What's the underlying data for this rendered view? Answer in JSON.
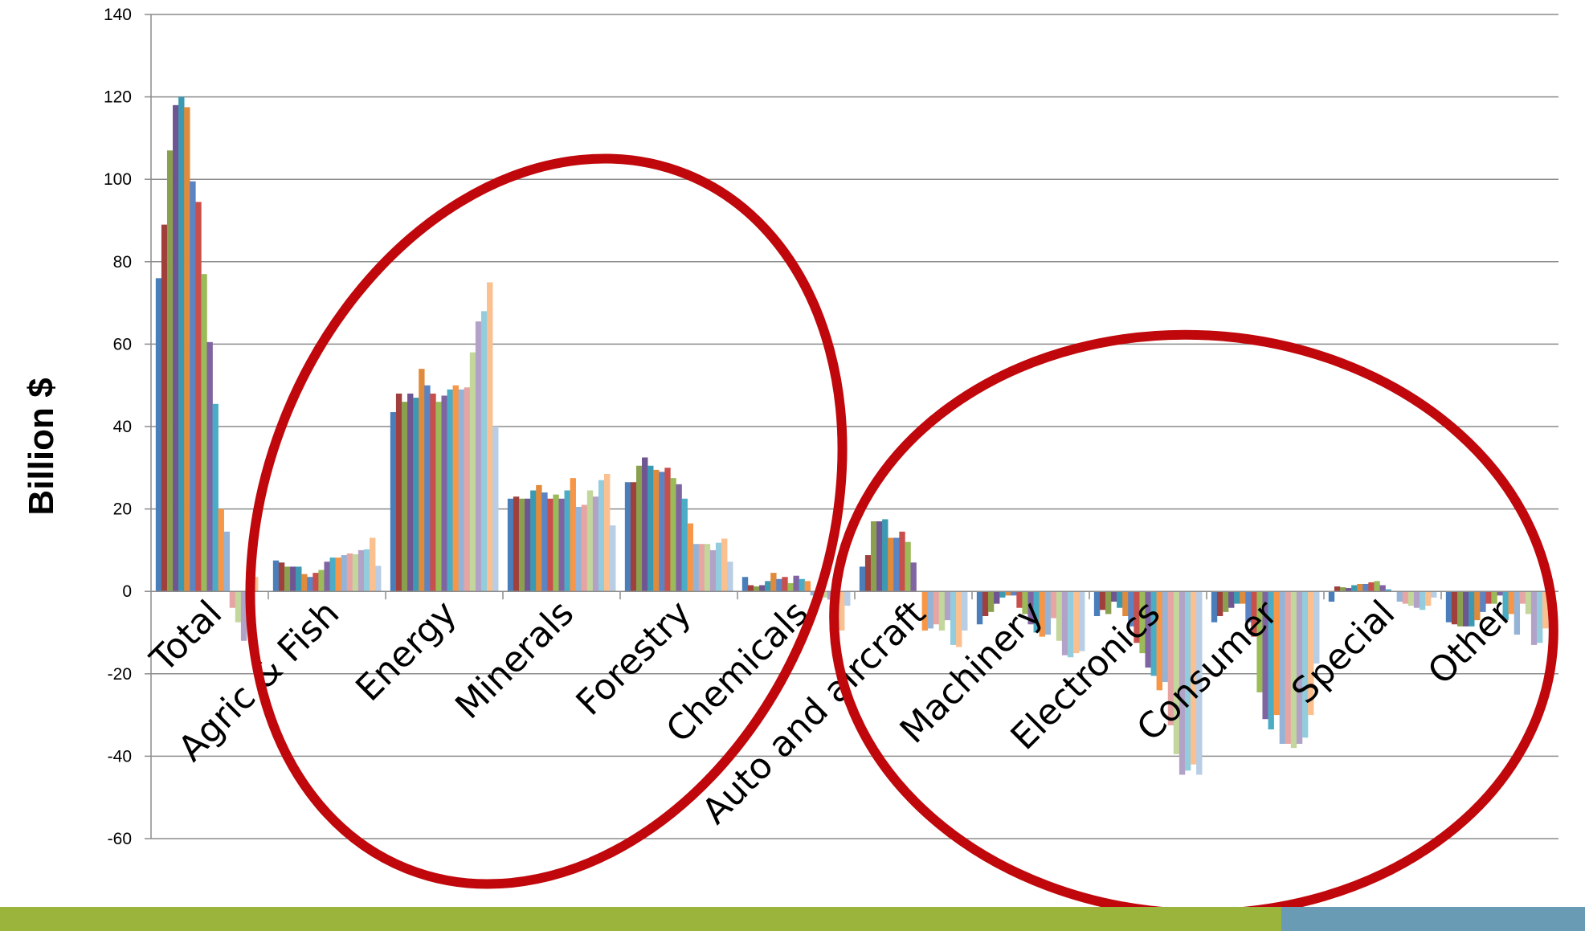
{
  "chart_data": {
    "type": "bar",
    "ylabel": "Billion $",
    "xlabel": "",
    "title": "",
    "ylim": [
      -60,
      140
    ],
    "yticks": [
      140,
      120,
      100,
      80,
      60,
      40,
      20,
      0,
      -20,
      -40,
      -60
    ],
    "grid": true,
    "legend": "none",
    "categories": [
      "Total",
      "Agric & Fish",
      "Energy",
      "Minerals",
      "Forestry",
      "Chemicals",
      "Auto and aircraft",
      "Machinery",
      "Electronics",
      "Consumer",
      "Special",
      "Other"
    ],
    "palette": [
      "#4A7EBB",
      "#A0403D",
      "#8AA04E",
      "#6F5591",
      "#3B9AB2",
      "#E08A3C",
      "#5B84C4",
      "#C94F4C",
      "#9BBB59",
      "#8064A2",
      "#4BACC6",
      "#F79646",
      "#95B3D7",
      "#E6A5A3",
      "#C3D69B",
      "#B3A2C7",
      "#93CDDD",
      "#FAC090",
      "#B9CDE5"
    ],
    "values": [
      [
        76,
        89,
        107,
        118,
        120,
        117.5,
        99.5,
        94.5,
        77,
        60.5,
        45.5,
        20,
        14.5,
        -4,
        -7.5,
        -12,
        3.5,
        3.5,
        0
      ],
      [
        7.5,
        7,
        6,
        6,
        6,
        4.2,
        3.5,
        4.5,
        5.2,
        7.2,
        8.2,
        8.2,
        8.8,
        9.2,
        9,
        10,
        10.2,
        13,
        6.2
      ],
      [
        43.5,
        48,
        46,
        48,
        47,
        54,
        50,
        48,
        46,
        47.5,
        49,
        50,
        49,
        49.5,
        58,
        65.5,
        68,
        75,
        40
      ],
      [
        22.5,
        23,
        22.5,
        22.5,
        24.5,
        25.8,
        24,
        22.5,
        23.5,
        22.5,
        24.5,
        27.5,
        20.5,
        21,
        24.5,
        23,
        27,
        28.5,
        16
      ],
      [
        26.5,
        26.5,
        30.5,
        32.5,
        30.5,
        29.5,
        29,
        30,
        27.5,
        26,
        22.5,
        16.5,
        11.5,
        11.5,
        11.5,
        10,
        11.8,
        12.8,
        7.2
      ],
      [
        3.5,
        1.5,
        1.2,
        1.5,
        2.5,
        4.5,
        3,
        3.5,
        2,
        3.8,
        3,
        2.5,
        -1,
        -1.2,
        -1.5,
        -2,
        -7,
        -9.5,
        -3.5
      ],
      [
        6,
        8.8,
        17,
        17,
        17.5,
        13,
        13,
        14.5,
        12,
        7,
        0,
        -9.5,
        -9,
        -8,
        -9.5,
        -7,
        -13,
        -13.5,
        -9.5
      ],
      [
        -8,
        -6,
        -5,
        -3,
        -1.5,
        -1,
        -1,
        -4,
        -5.5,
        -8,
        -10,
        -11,
        -10.5,
        -6.5,
        -12,
        -15.5,
        -16,
        -15,
        -14.5
      ],
      [
        -6,
        -4.5,
        -5.5,
        -2.5,
        -4,
        -6,
        -8.5,
        -12.5,
        -15,
        -18.5,
        -20.5,
        -24,
        -22,
        -32.5,
        -39.5,
        -44.5,
        -43.5,
        -42,
        -44.5
      ],
      [
        -7.5,
        -6,
        -5,
        -4,
        -3,
        -3,
        -7.5,
        -11,
        -24.5,
        -31,
        -33.5,
        -30,
        -37,
        -37,
        -38,
        -37,
        -35.5,
        -30,
        -17.5
      ],
      [
        -2.5,
        1.2,
        1,
        0.8,
        1.5,
        1.8,
        1.8,
        2.2,
        2.5,
        1.5,
        0.5,
        0,
        -2.5,
        -3,
        -3.5,
        -4,
        -4.5,
        -3.5,
        -1.5
      ],
      [
        -7.5,
        -8,
        -8.5,
        -8.5,
        -8.5,
        -7,
        -5,
        -3,
        -3,
        -1,
        -7,
        -5.5,
        -10.5,
        -3,
        -5.5,
        -13,
        -12.5,
        -9,
        -6.5
      ]
    ]
  },
  "footer": {
    "left_color": "#9BB43C",
    "right_color": "#6A9BB5"
  }
}
